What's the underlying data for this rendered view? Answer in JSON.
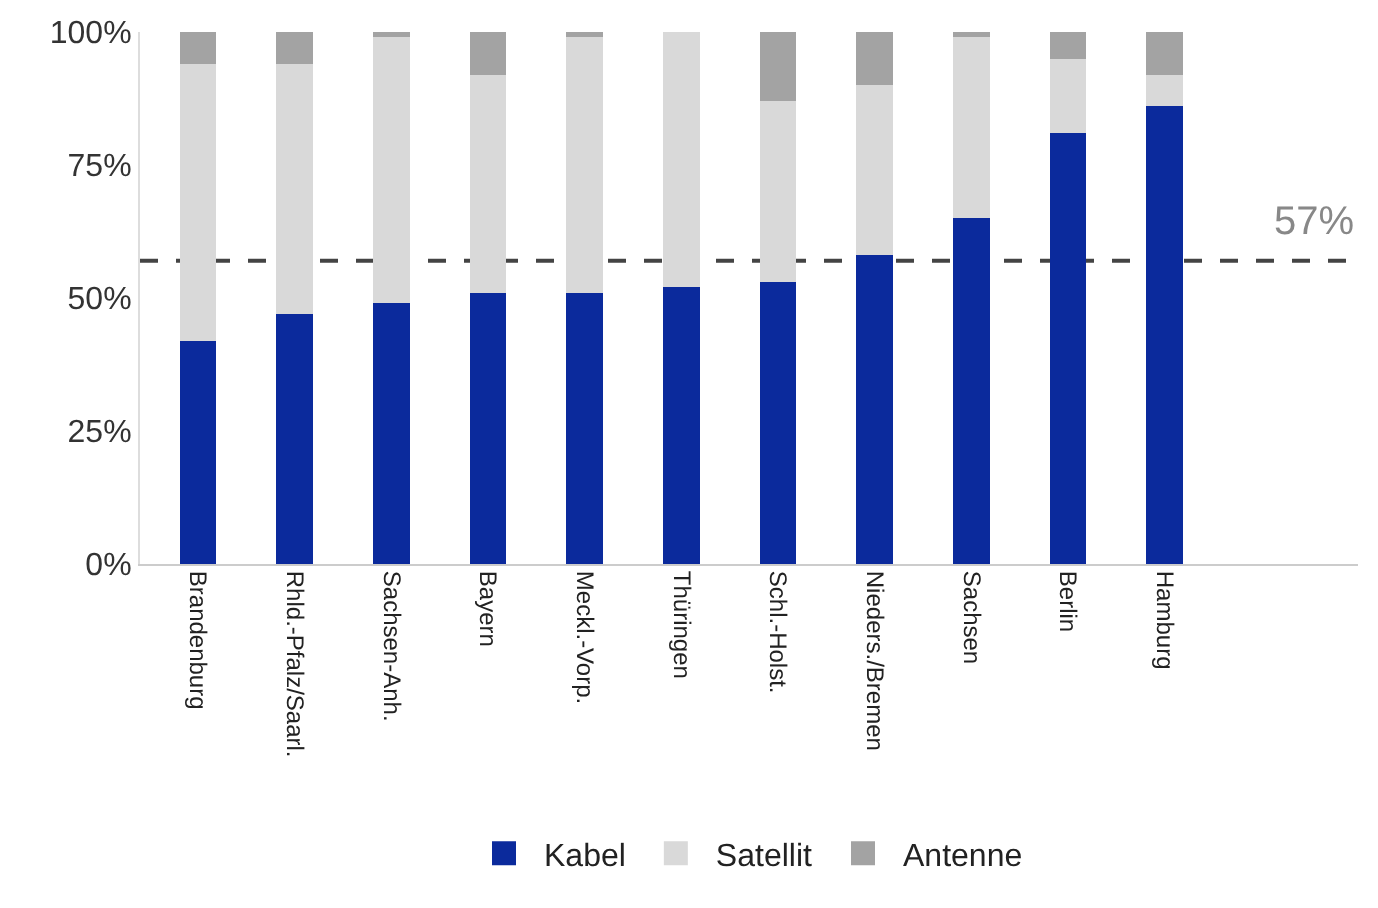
{
  "chart_data": {
    "type": "bar",
    "stacked": true,
    "categories": [
      "Brandenburg",
      "Rhld.-Pfalz/Saarl.",
      "Sachsen-Anh.",
      "Bayern",
      "Meckl.-Vorp.",
      "Thüringen",
      "Schl.-Holst.",
      "Nieders./Bremen",
      "Sachsen",
      "Berlin",
      "Hamburg"
    ],
    "series": [
      {
        "name": "Kabel",
        "color": "#0b2a9c",
        "values": [
          42,
          47,
          49,
          51,
          51,
          52,
          53,
          58,
          65,
          81,
          86
        ]
      },
      {
        "name": "Satellit",
        "color": "#d9d9d9",
        "values": [
          52,
          47,
          50,
          41,
          48,
          48,
          34,
          32,
          34,
          14,
          6
        ]
      },
      {
        "name": "Antenne",
        "color": "#a3a3a3",
        "values": [
          6,
          6,
          1,
          8,
          1,
          0,
          13,
          10,
          1,
          5,
          8
        ]
      }
    ],
    "ylim": [
      0,
      100
    ],
    "yticks": [
      {
        "value": 0,
        "label": "0%"
      },
      {
        "value": 25,
        "label": "25%"
      },
      {
        "value": 50,
        "label": "50%"
      },
      {
        "value": 75,
        "label": "75%"
      },
      {
        "value": 100,
        "label": "100%"
      }
    ],
    "ref_lines": [
      {
        "axis": "y",
        "value": 57,
        "label": "57%",
        "color": "#444444",
        "line_style": "dashed"
      }
    ],
    "legend": "bottom"
  }
}
